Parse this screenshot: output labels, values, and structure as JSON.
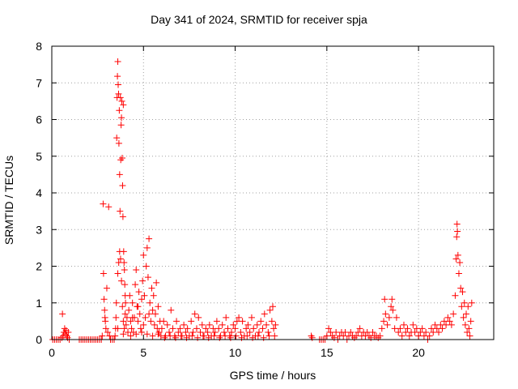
{
  "chart_data": {
    "type": "scatter",
    "title": "Day 341 of 2024, SRMTID for receiver spja",
    "xlabel": "GPS time / hours",
    "ylabel": "SRMTID / TECUs",
    "xlim": [
      0,
      24.1
    ],
    "ylim": [
      0,
      8
    ],
    "xticks": [
      0,
      5,
      10,
      15,
      20
    ],
    "yticks": [
      0,
      1,
      2,
      3,
      4,
      5,
      6,
      7,
      8
    ],
    "grid": true,
    "marker": "+",
    "color": "#ff0000",
    "series": [
      {
        "name": "SRMTID",
        "points": [
          [
            0.05,
            0
          ],
          [
            0.15,
            0
          ],
          [
            0.25,
            0
          ],
          [
            0.35,
            0
          ],
          [
            0.45,
            0
          ],
          [
            0.55,
            0.05
          ],
          [
            0.58,
            0.7
          ],
          [
            0.62,
            0.1
          ],
          [
            0.66,
            0.2
          ],
          [
            0.7,
            0.3
          ],
          [
            0.74,
            0.15
          ],
          [
            0.78,
            0.25
          ],
          [
            0.82,
            0.1
          ],
          [
            0.86,
            0.05
          ],
          [
            0.9,
            0.2
          ],
          [
            0.95,
            0
          ],
          [
            1.5,
            0
          ],
          [
            1.6,
            0
          ],
          [
            1.7,
            0
          ],
          [
            1.8,
            0
          ],
          [
            1.9,
            0
          ],
          [
            2.0,
            0
          ],
          [
            2.1,
            0
          ],
          [
            2.2,
            0
          ],
          [
            2.3,
            0
          ],
          [
            2.4,
            0
          ],
          [
            2.5,
            0
          ],
          [
            2.6,
            0
          ],
          [
            2.7,
            0
          ],
          [
            2.75,
            0.1
          ],
          [
            2.8,
            3.7
          ],
          [
            2.82,
            1.8
          ],
          [
            2.85,
            1.1
          ],
          [
            2.88,
            0.8
          ],
          [
            2.9,
            0.6
          ],
          [
            2.92,
            0.5
          ],
          [
            2.95,
            0.3
          ],
          [
            3.0,
            1.4
          ],
          [
            3.05,
            0.2
          ],
          [
            3.1,
            3.62
          ],
          [
            3.15,
            0.1
          ],
          [
            3.2,
            0
          ],
          [
            3.3,
            0
          ],
          [
            3.4,
            0
          ],
          [
            3.45,
            0.1
          ],
          [
            3.48,
            0.3
          ],
          [
            3.5,
            0.6
          ],
          [
            3.52,
            1.0
          ],
          [
            3.54,
            5.5
          ],
          [
            3.56,
            6.6
          ],
          [
            3.58,
            7.18
          ],
          [
            3.6,
            7.58
          ],
          [
            3.62,
            6.95
          ],
          [
            3.64,
            6.7
          ],
          [
            3.66,
            5.35
          ],
          [
            3.68,
            6.25
          ],
          [
            3.7,
            4.5
          ],
          [
            3.72,
            3.5
          ],
          [
            3.74,
            6.6
          ],
          [
            3.76,
            4.9
          ],
          [
            3.78,
            5.85
          ],
          [
            3.8,
            6.05
          ],
          [
            3.82,
            6.5
          ],
          [
            3.84,
            4.95
          ],
          [
            3.86,
            4.2
          ],
          [
            3.88,
            3.35
          ],
          [
            3.9,
            6.4
          ],
          [
            3.92,
            2.4
          ],
          [
            3.94,
            2.1
          ],
          [
            3.96,
            1.9
          ],
          [
            3.98,
            1.5
          ],
          [
            4.0,
            1.2
          ],
          [
            4.02,
            1.0
          ],
          [
            3.6,
            1.8
          ],
          [
            3.65,
            2.1
          ],
          [
            3.7,
            2.4
          ],
          [
            3.75,
            2.2
          ],
          [
            3.8,
            1.6
          ],
          [
            3.85,
            0.9
          ],
          [
            3.9,
            0.5
          ],
          [
            3.95,
            0.3
          ],
          [
            4.0,
            0.7
          ],
          [
            4.05,
            0.4
          ],
          [
            4.1,
            0.6
          ],
          [
            4.15,
            0.2
          ],
          [
            4.2,
            0.8
          ],
          [
            4.25,
            1.2
          ],
          [
            4.3,
            0.5
          ],
          [
            4.35,
            0.3
          ],
          [
            4.4,
            1.0
          ],
          [
            4.45,
            0.2
          ],
          [
            4.5,
            0.6
          ],
          [
            4.55,
            1.5
          ],
          [
            4.6,
            1.9
          ],
          [
            4.65,
            0.9
          ],
          [
            4.7,
            0.5
          ],
          [
            4.75,
            1.3
          ],
          [
            4.8,
            0.7
          ],
          [
            4.85,
            0.3
          ],
          [
            4.9,
            1.1
          ],
          [
            4.95,
            1.6
          ],
          [
            5.0,
            2.3
          ],
          [
            5.05,
            1.2
          ],
          [
            5.1,
            0.6
          ],
          [
            5.15,
            2.0
          ],
          [
            5.2,
            2.5
          ],
          [
            5.25,
            1.7
          ],
          [
            5.3,
            2.75
          ],
          [
            5.35,
            1.0
          ],
          [
            5.4,
            0.5
          ],
          [
            5.45,
            1.4
          ],
          [
            5.5,
            0.8
          ],
          [
            5.55,
            1.2
          ],
          [
            5.6,
            0.4
          ],
          [
            5.65,
            0.7
          ],
          [
            5.7,
            1.55
          ],
          [
            5.75,
            0.3
          ],
          [
            5.8,
            0.9
          ],
          [
            5.85,
            0.2
          ],
          [
            5.9,
            0.5
          ],
          [
            5.95,
            0.1
          ],
          [
            4.3,
            0.1
          ],
          [
            4.6,
            0.15
          ],
          [
            4.9,
            0.2
          ],
          [
            5.2,
            0.15
          ],
          [
            5.5,
            0.1
          ],
          [
            5.8,
            0.15
          ],
          [
            3.6,
            0.3
          ],
          [
            3.9,
            0.15
          ],
          [
            4.4,
            0.6
          ],
          [
            4.7,
            0.9
          ],
          [
            5.0,
            0.4
          ],
          [
            5.3,
            0.7
          ],
          [
            6.0,
            0.3
          ],
          [
            6.1,
            0.5
          ],
          [
            6.2,
            0.1
          ],
          [
            6.3,
            0.4
          ],
          [
            6.4,
            0.2
          ],
          [
            6.5,
            0.8
          ],
          [
            6.6,
            0.3
          ],
          [
            6.7,
            0.1
          ],
          [
            6.8,
            0.5
          ],
          [
            6.9,
            0.2
          ],
          [
            7.0,
            0.3
          ],
          [
            7.1,
            0.1
          ],
          [
            7.2,
            0.4
          ],
          [
            7.3,
            0.2
          ],
          [
            7.4,
            0.3
          ],
          [
            7.5,
            0.1
          ],
          [
            7.6,
            0.5
          ],
          [
            7.7,
            0.2
          ],
          [
            7.8,
            0.7
          ],
          [
            7.9,
            0.3
          ],
          [
            8.0,
            0.6
          ],
          [
            8.1,
            0.2
          ],
          [
            8.2,
            0.4
          ],
          [
            8.3,
            0.1
          ],
          [
            8.4,
            0.3
          ],
          [
            8.5,
            0.2
          ],
          [
            8.6,
            0.4
          ],
          [
            8.7,
            0.1
          ],
          [
            8.8,
            0.3
          ],
          [
            8.9,
            0.2
          ],
          [
            9.0,
            0.5
          ],
          [
            9.1,
            0.3
          ],
          [
            9.2,
            0.1
          ],
          [
            9.3,
            0.4
          ],
          [
            9.4,
            0.2
          ],
          [
            9.5,
            0.6
          ],
          [
            9.6,
            0.3
          ],
          [
            9.7,
            0.1
          ],
          [
            9.8,
            0.2
          ],
          [
            9.9,
            0.4
          ],
          [
            10.0,
            0.3
          ],
          [
            10.1,
            0.5
          ],
          [
            10.2,
            0.6
          ],
          [
            10.3,
            0.2
          ],
          [
            10.4,
            0.5
          ],
          [
            10.5,
            0.1
          ],
          [
            10.6,
            0.3
          ],
          [
            10.7,
            0.4
          ],
          [
            10.8,
            0.2
          ],
          [
            10.9,
            0.6
          ],
          [
            11.0,
            0.3
          ],
          [
            11.1,
            0.1
          ],
          [
            11.2,
            0.4
          ],
          [
            11.3,
            0.2
          ],
          [
            11.4,
            0.5
          ],
          [
            11.5,
            0.3
          ],
          [
            11.6,
            0.7
          ],
          [
            11.7,
            0.4
          ],
          [
            11.8,
            0.2
          ],
          [
            11.9,
            0.8
          ],
          [
            12.0,
            0.5
          ],
          [
            12.05,
            0.9
          ],
          [
            12.1,
            0.3
          ],
          [
            12.15,
            0.1
          ],
          [
            12.2,
            0.4
          ],
          [
            6.15,
            0.05
          ],
          [
            6.45,
            0.1
          ],
          [
            6.75,
            0.05
          ],
          [
            7.05,
            0.1
          ],
          [
            7.35,
            0.05
          ],
          [
            7.65,
            0.1
          ],
          [
            7.95,
            0.05
          ],
          [
            8.25,
            0.1
          ],
          [
            8.55,
            0.05
          ],
          [
            8.85,
            0.1
          ],
          [
            9.15,
            0.05
          ],
          [
            9.45,
            0.1
          ],
          [
            9.75,
            0.05
          ],
          [
            10.05,
            0.1
          ],
          [
            10.35,
            0.05
          ],
          [
            10.65,
            0.1
          ],
          [
            10.95,
            0.05
          ],
          [
            11.25,
            0.1
          ],
          [
            11.55,
            0.05
          ],
          [
            11.85,
            0.1
          ],
          [
            14.15,
            0.1
          ],
          [
            14.2,
            0.05
          ],
          [
            14.6,
            0
          ],
          [
            14.7,
            0
          ],
          [
            14.8,
            0
          ],
          [
            14.9,
            0
          ],
          [
            15.0,
            0.1
          ],
          [
            15.1,
            0.3
          ],
          [
            15.2,
            0.2
          ],
          [
            15.3,
            0.1
          ],
          [
            15.4,
            0.05
          ],
          [
            15.5,
            0.2
          ],
          [
            15.6,
            0
          ],
          [
            15.7,
            0.1
          ],
          [
            15.8,
            0.2
          ],
          [
            15.9,
            0.1
          ],
          [
            16.0,
            0.2
          ],
          [
            16.1,
            0
          ],
          [
            16.2,
            0.1
          ],
          [
            16.3,
            0.2
          ],
          [
            16.4,
            0.1
          ],
          [
            16.5,
            0.05
          ],
          [
            16.6,
            0.1
          ],
          [
            16.7,
            0.2
          ],
          [
            16.8,
            0.3
          ],
          [
            16.9,
            0.1
          ],
          [
            17.0,
            0.2
          ],
          [
            17.1,
            0.1
          ],
          [
            17.2,
            0.2
          ],
          [
            17.3,
            0.1
          ],
          [
            17.4,
            0.05
          ],
          [
            17.5,
            0.2
          ],
          [
            17.6,
            0.1
          ],
          [
            17.7,
            0.1
          ],
          [
            17.8,
            0.05
          ],
          [
            17.9,
            0.1
          ],
          [
            18.0,
            0.3
          ],
          [
            18.1,
            0.5
          ],
          [
            18.15,
            1.1
          ],
          [
            18.2,
            0.7
          ],
          [
            18.3,
            0.4
          ],
          [
            18.4,
            0.6
          ],
          [
            18.5,
            0.9
          ],
          [
            18.55,
            1.1
          ],
          [
            18.6,
            0.8
          ],
          [
            18.7,
            0.3
          ],
          [
            18.8,
            0.6
          ],
          [
            18.9,
            0.2
          ],
          [
            19.0,
            0.3
          ],
          [
            19.1,
            0.1
          ],
          [
            19.2,
            0.4
          ],
          [
            19.3,
            0.2
          ],
          [
            19.4,
            0.3
          ],
          [
            19.5,
            0.1
          ],
          [
            19.6,
            0.2
          ],
          [
            19.7,
            0.4
          ],
          [
            19.8,
            0.2
          ],
          [
            19.9,
            0.3
          ],
          [
            20.0,
            0.1
          ],
          [
            20.1,
            0.2
          ],
          [
            20.2,
            0.3
          ],
          [
            20.3,
            0.1
          ],
          [
            20.4,
            0.2
          ],
          [
            20.5,
            0
          ],
          [
            20.6,
            0.1
          ],
          [
            20.7,
            0.3
          ],
          [
            20.8,
            0.2
          ],
          [
            20.9,
            0.4
          ],
          [
            21.0,
            0.3
          ],
          [
            21.1,
            0.2
          ],
          [
            21.2,
            0.4
          ],
          [
            21.3,
            0.3
          ],
          [
            21.4,
            0.5
          ],
          [
            21.5,
            0.4
          ],
          [
            21.6,
            0.6
          ],
          [
            21.7,
            0.5
          ],
          [
            21.8,
            0.4
          ],
          [
            21.9,
            0.7
          ],
          [
            22.0,
            1.2
          ],
          [
            22.05,
            2.2
          ],
          [
            22.08,
            2.8
          ],
          [
            22.1,
            3.15
          ],
          [
            22.12,
            2.95
          ],
          [
            22.15,
            2.3
          ],
          [
            22.2,
            1.8
          ],
          [
            22.25,
            2.1
          ],
          [
            22.3,
            1.4
          ],
          [
            22.35,
            0.9
          ],
          [
            22.4,
            1.3
          ],
          [
            22.45,
            0.6
          ],
          [
            22.5,
            1.0
          ],
          [
            22.55,
            0.4
          ],
          [
            22.6,
            0.7
          ],
          [
            22.65,
            0.2
          ],
          [
            22.7,
            0.9
          ],
          [
            22.75,
            0.3
          ],
          [
            22.8,
            0.1
          ],
          [
            22.85,
            0.5
          ],
          [
            22.9,
            1.0
          ]
        ]
      }
    ]
  }
}
